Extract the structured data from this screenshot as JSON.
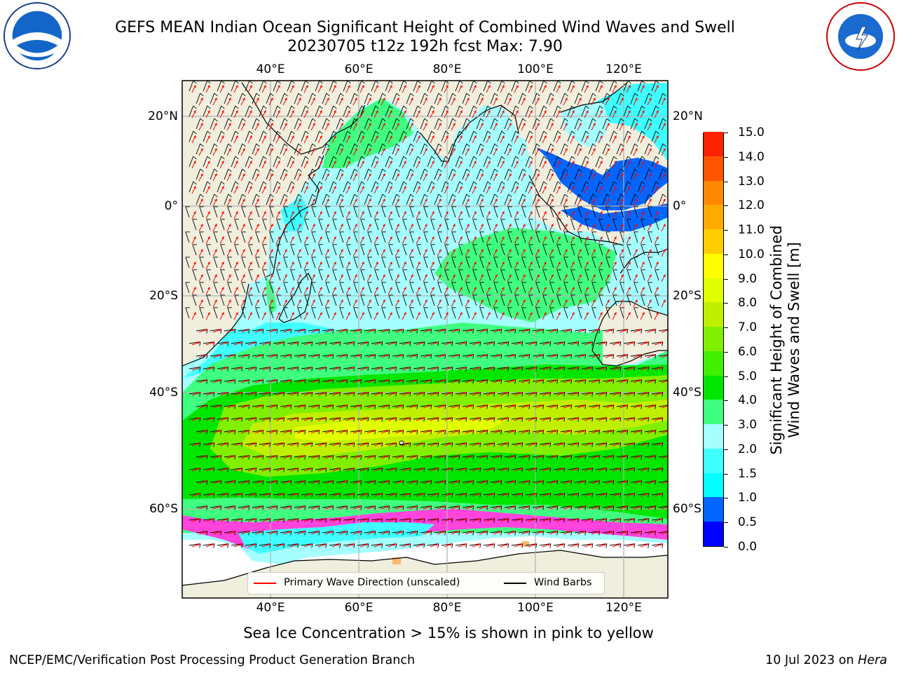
{
  "header": {
    "title_line1": "GEFS MEAN Indian Ocean Significant Height of Combined Wind Waves and Swell",
    "title_line2": "20230705 t12z 192h fcst   Max: 7.90"
  },
  "axes": {
    "lon_labels": [
      "40°E",
      "60°E",
      "80°E",
      "100°E",
      "120°E"
    ],
    "lat_labels": [
      "20°N",
      "0°",
      "20°S",
      "40°S",
      "60°S"
    ]
  },
  "colorbar": {
    "title": "Significant Height of Combined Wind Waves and Swell [m]",
    "title_line1": "Significant Height of Combined",
    "title_line2": "Wind Waves and Swell [m]",
    "tick_labels": [
      "0.0",
      "0.5",
      "1.0",
      "1.5",
      "2.0",
      "3.0",
      "4.0",
      "5.0",
      "6.0",
      "7.0",
      "8.0",
      "9.0",
      "10.0",
      "11.0",
      "12.0",
      "13.0",
      "14.0",
      "15.0"
    ],
    "colors": [
      "#0000ff",
      "#0066ff",
      "#00ffff",
      "#40ffff",
      "#a6ffff",
      "#40ff80",
      "#00e600",
      "#40f000",
      "#80f000",
      "#c0f000",
      "#e0ff00",
      "#ffff00",
      "#ffcc00",
      "#ffaa00",
      "#ff8800",
      "#ff5500",
      "#ff2200"
    ]
  },
  "legend": {
    "wave_direction": "Primary Wave Direction (unscaled)",
    "wind_barbs": "Wind Barbs",
    "wave_color": "#ff0000",
    "barb_color": "#000000"
  },
  "notes": {
    "sea_ice": "Sea Ice Concentration > 15% is shown in pink to yellow"
  },
  "footer": {
    "left": "NCEP/EMC/Verification Post Processing Product Generation Branch",
    "right_date": "10 Jul 2023 on ",
    "right_host": "Hera"
  },
  "colors": {
    "land": "#f0eedc",
    "sea_ice_pink": "#ff44dd",
    "grid": "#b0b0b0"
  }
}
